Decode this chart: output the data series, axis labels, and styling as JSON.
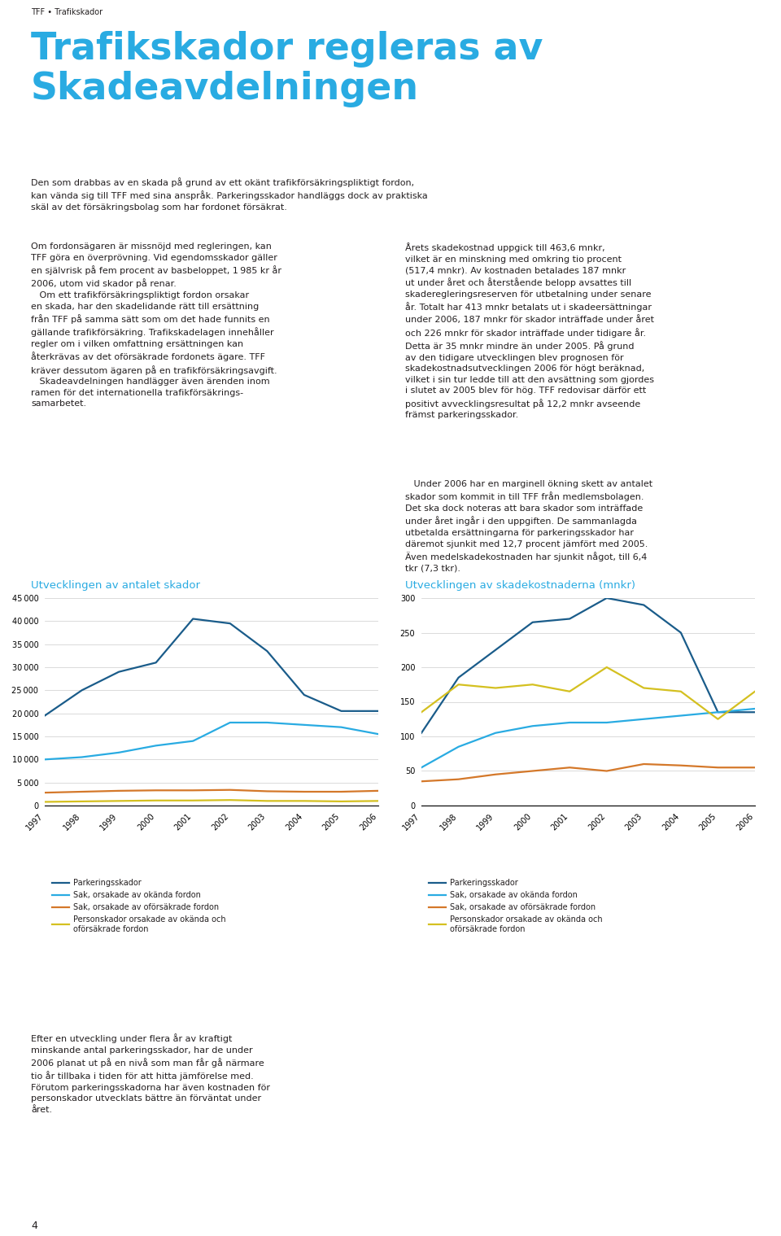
{
  "page_bg": "#ffffff",
  "header_text": "TFF • Trafikskador",
  "title_line1": "Trafikskador regleras av",
  "title_line2": "Skadeavdelningen",
  "title_color": "#29abe2",
  "intro_text": "Den som drabbas av en skada på grund av ett okänt trafikförsäkringspliktigt fordon, kan vända sig till TFF med sina anspråk. Parkeringsskador handläggs dock av praktiska skäl av det försäkringsbolag som har fordonet försäkrat.",
  "left_col_text": "Om fordonsägaren är missnöjd med regleringen, kan TFF göra en överprövning. Vid egendomsskador gäller en självrisk på fem procent av basbeloppet, 1 985 kr år 2006, utom vid skador på renar.\n Om ett trafikförsäkringspliktigt fordon orsakar en skada, har den skadelidande rätt till ersättning från TFF på samma sätt som om det hade funnits en gällande trafikförsäkring. Trafikskadelagen innehåller regler om i vilken omfattning ersättningen kan återkrävas av det oförsäkrade fordonets ägare. TFF kräver dessutom ägaren på en trafikförsäkringsavgift.\n Skadeavdelningen handlägger även ärenden inom ramen för det internationella trafikförsäkrings-samarbetet.",
  "right_col_text1": "Årets skadekostnad uppgick till 463,6 mnkr, vilket är en minskning med omkring tio procent (517,4 mnkr). Av kostnaden betalades 187 mnkr ut under året och återstående belopp avsattes till skaderegleringsreserven för utbetalning under senare år. Totalt har 413 mnkr betalats ut i skadeersättningar under 2006, 187 mnkr för skador inträffade under året och 226 mnkr för skador inträffade under tidigare år. Detta är 35 mnkr mindre än under 2005. På grund av den tidigare utvecklingen blev prognosen för skadekostnadsutvecklingen 2006 för högt beräknad, vilket i sin tur ledde till att den avsättning som gjordes i slutet av 2005 blev för hög. TFF redovisar därför ett positivt avvecklingsresultat på 12,2 mnkr avseende främst parkeringsskador.",
  "right_col_text2": " Under 2006 har en marginell ökning skett av antalet skador som kommit in till TFF från medlemsbolagen. Det ska dock noteras att bara skador som inträffade under året ingår i den uppgiften. De sammanlagda utbetalda ersättningarna för parkeringsskador har däremot sjunkit med 12,7 procent jämfört med 2005. Även medelskadekostnaden har sjunkit något, till 6,4 tkr (7,3 tkr).",
  "chart1_title": "Utvecklingen av antalet skador",
  "chart1_title_color": "#29abe2",
  "chart2_title": "Utvecklingen av skadekostnaderna (mnkr)",
  "chart2_title_color": "#29abe2",
  "left_bottom_text": "Efter en utveckling under flera år av kraftigt minskande antal parkeringsskador, har de under 2006 planat ut på en nivå som man får gå närmare tio år tillbaka i tiden för att hitta jämförelse med. Förutom parkeringsskadorna har även kostnaden för personskador utvecklats bättre än förväntat under året.",
  "years": [
    1997,
    1998,
    1999,
    2000,
    2001,
    2002,
    2003,
    2004,
    2005,
    2006
  ],
  "chart1_parking": [
    19500,
    25000,
    29000,
    31000,
    40500,
    39500,
    33500,
    24000,
    20500,
    20500
  ],
  "chart1_sak_okanda": [
    10000,
    10500,
    11500,
    13000,
    14000,
    18000,
    18000,
    17500,
    17000,
    15500
  ],
  "chart1_sak_ofor": [
    2800,
    3000,
    3200,
    3300,
    3300,
    3400,
    3100,
    3000,
    3000,
    3200
  ],
  "chart1_person": [
    800,
    900,
    1000,
    1100,
    1100,
    1200,
    1000,
    1000,
    900,
    1000
  ],
  "chart2_parking": [
    105,
    185,
    225,
    265,
    270,
    300,
    290,
    250,
    135,
    135
  ],
  "chart2_sak_okanda": [
    55,
    85,
    105,
    115,
    120,
    120,
    125,
    130,
    135,
    140
  ],
  "chart2_sak_ofor": [
    35,
    38,
    45,
    50,
    55,
    50,
    60,
    58,
    55,
    55
  ],
  "chart2_person": [
    135,
    175,
    170,
    175,
    165,
    200,
    170,
    165,
    125,
    165
  ],
  "color_parking": "#1a5c8a",
  "color_sak_okanda": "#29abe2",
  "color_sak_ofor": "#d4782a",
  "color_person": "#d4c020",
  "legend_labels": [
    "Parkeringsskador",
    "Sak, orsakade av okända fordon",
    "Sak, orsakade av oförsäkrade fordon",
    "Personskador orsakade av okända och\noförsäkrade fordon"
  ],
  "footer_text": "4",
  "text_color": "#231f20",
  "body_fontsize": 8.0,
  "chart1_ylim": [
    0,
    45000
  ],
  "chart1_yticks": [
    0,
    5000,
    10000,
    15000,
    20000,
    25000,
    30000,
    35000,
    40000,
    45000
  ],
  "chart2_ylim": [
    0,
    300
  ],
  "chart2_yticks": [
    0,
    50,
    100,
    150,
    200,
    250,
    300
  ]
}
